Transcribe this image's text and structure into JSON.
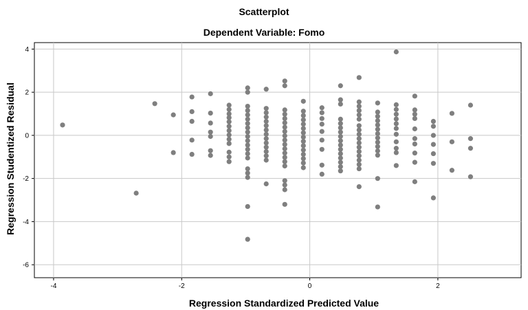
{
  "chart_data": {
    "type": "scatter",
    "title": "Scatterplot",
    "subtitle": "Dependent Variable: Fomo",
    "xlabel": "Regression Standardized Predicted Value",
    "ylabel": "Regression Studentized Residual",
    "xlim": [
      -4.3,
      3.3
    ],
    "ylim": [
      -6.6,
      4.3
    ],
    "xticks": [
      -4,
      -2,
      0,
      2
    ],
    "yticks": [
      4,
      2,
      0,
      -2,
      -4,
      -6
    ],
    "grid": true,
    "point_color": "#7f7f7f",
    "gridline_color": "#c8c8c8",
    "points": [
      [
        -3.86,
        0.48
      ],
      [
        -2.71,
        -2.68
      ],
      [
        -2.42,
        1.47
      ],
      [
        -2.13,
        0.95
      ],
      [
        -2.13,
        -0.8
      ],
      [
        -1.84,
        1.78
      ],
      [
        -1.84,
        1.1
      ],
      [
        -1.84,
        0.65
      ],
      [
        -1.84,
        -0.22
      ],
      [
        -1.84,
        -0.88
      ],
      [
        -1.55,
        1.93
      ],
      [
        -1.55,
        1.03
      ],
      [
        -1.55,
        0.57
      ],
      [
        -1.55,
        0.15
      ],
      [
        -1.55,
        -0.05
      ],
      [
        -1.55,
        -0.71
      ],
      [
        -1.55,
        -0.93
      ],
      [
        -1.26,
        1.4
      ],
      [
        -1.26,
        1.2
      ],
      [
        -1.26,
        1.0
      ],
      [
        -1.26,
        0.82
      ],
      [
        -1.26,
        0.63
      ],
      [
        -1.26,
        0.42
      ],
      [
        -1.26,
        0.22
      ],
      [
        -1.26,
        0.02
      ],
      [
        -1.26,
        -0.18
      ],
      [
        -1.26,
        -0.38
      ],
      [
        -1.26,
        -0.78
      ],
      [
        -1.26,
        -1.0
      ],
      [
        -1.26,
        -1.22
      ],
      [
        -0.97,
        2.2
      ],
      [
        -0.97,
        2.0
      ],
      [
        -0.97,
        1.35
      ],
      [
        -0.97,
        1.15
      ],
      [
        -0.97,
        0.95
      ],
      [
        -0.97,
        0.75
      ],
      [
        -0.97,
        0.55
      ],
      [
        -0.97,
        0.35
      ],
      [
        -0.97,
        0.15
      ],
      [
        -0.97,
        -0.05
      ],
      [
        -0.97,
        -0.25
      ],
      [
        -0.97,
        -0.45
      ],
      [
        -0.97,
        -0.65
      ],
      [
        -0.97,
        -0.85
      ],
      [
        -0.97,
        -1.05
      ],
      [
        -0.97,
        -1.55
      ],
      [
        -0.97,
        -1.75
      ],
      [
        -0.97,
        -1.95
      ],
      [
        -0.97,
        -3.3
      ],
      [
        -0.97,
        -4.82
      ],
      [
        -0.68,
        2.14
      ],
      [
        -0.68,
        1.25
      ],
      [
        -0.68,
        1.05
      ],
      [
        -0.68,
        0.85
      ],
      [
        -0.68,
        0.65
      ],
      [
        -0.68,
        0.45
      ],
      [
        -0.68,
        0.25
      ],
      [
        -0.68,
        0.05
      ],
      [
        -0.68,
        -0.15
      ],
      [
        -0.68,
        -0.35
      ],
      [
        -0.68,
        -0.55
      ],
      [
        -0.68,
        -0.75
      ],
      [
        -0.68,
        -0.95
      ],
      [
        -0.68,
        -1.15
      ],
      [
        -0.68,
        -2.25
      ],
      [
        -0.39,
        2.52
      ],
      [
        -0.39,
        2.3
      ],
      [
        -0.39,
        1.18
      ],
      [
        -0.39,
        0.98
      ],
      [
        -0.39,
        0.78
      ],
      [
        -0.39,
        0.58
      ],
      [
        -0.39,
        0.38
      ],
      [
        -0.39,
        0.18
      ],
      [
        -0.39,
        -0.02
      ],
      [
        -0.39,
        -0.22
      ],
      [
        -0.39,
        -0.42
      ],
      [
        -0.39,
        -0.62
      ],
      [
        -0.39,
        -0.82
      ],
      [
        -0.39,
        -1.02
      ],
      [
        -0.39,
        -1.22
      ],
      [
        -0.39,
        -1.42
      ],
      [
        -0.39,
        -2.1
      ],
      [
        -0.39,
        -2.3
      ],
      [
        -0.39,
        -2.52
      ],
      [
        -0.39,
        -3.2
      ],
      [
        -0.1,
        1.58
      ],
      [
        -0.1,
        1.12
      ],
      [
        -0.1,
        0.92
      ],
      [
        -0.1,
        0.72
      ],
      [
        -0.1,
        0.52
      ],
      [
        -0.1,
        0.32
      ],
      [
        -0.1,
        0.12
      ],
      [
        -0.1,
        -0.08
      ],
      [
        -0.1,
        -0.28
      ],
      [
        -0.1,
        -0.48
      ],
      [
        -0.1,
        -0.68
      ],
      [
        -0.1,
        -0.88
      ],
      [
        -0.1,
        -1.08
      ],
      [
        -0.1,
        -1.28
      ],
      [
        -0.1,
        -1.5
      ],
      [
        0.19,
        1.28
      ],
      [
        0.19,
        1.05
      ],
      [
        0.19,
        0.78
      ],
      [
        0.19,
        0.52
      ],
      [
        0.19,
        0.18
      ],
      [
        0.19,
        -0.22
      ],
      [
        0.19,
        -0.65
      ],
      [
        0.19,
        -1.38
      ],
      [
        0.19,
        -1.8
      ],
      [
        0.48,
        2.3
      ],
      [
        0.48,
        1.65
      ],
      [
        0.48,
        1.45
      ],
      [
        0.48,
        0.75
      ],
      [
        0.48,
        0.55
      ],
      [
        0.48,
        0.35
      ],
      [
        0.48,
        0.15
      ],
      [
        0.48,
        -0.05
      ],
      [
        0.48,
        -0.25
      ],
      [
        0.48,
        -0.45
      ],
      [
        0.48,
        -0.65
      ],
      [
        0.48,
        -0.85
      ],
      [
        0.48,
        -1.05
      ],
      [
        0.48,
        -1.25
      ],
      [
        0.48,
        -1.45
      ],
      [
        0.48,
        -1.65
      ],
      [
        0.77,
        2.68
      ],
      [
        0.77,
        1.55
      ],
      [
        0.77,
        1.35
      ],
      [
        0.77,
        1.15
      ],
      [
        0.77,
        0.95
      ],
      [
        0.77,
        0.75
      ],
      [
        0.77,
        0.45
      ],
      [
        0.77,
        0.25
      ],
      [
        0.77,
        0.05
      ],
      [
        0.77,
        -0.15
      ],
      [
        0.77,
        -0.35
      ],
      [
        0.77,
        -0.55
      ],
      [
        0.77,
        -0.75
      ],
      [
        0.77,
        -0.95
      ],
      [
        0.77,
        -1.15
      ],
      [
        0.77,
        -1.35
      ],
      [
        0.77,
        -1.55
      ],
      [
        0.77,
        -2.38
      ],
      [
        1.06,
        1.5
      ],
      [
        1.06,
        1.08
      ],
      [
        1.06,
        0.88
      ],
      [
        1.06,
        0.68
      ],
      [
        1.06,
        0.48
      ],
      [
        1.06,
        0.28
      ],
      [
        1.06,
        0.08
      ],
      [
        1.06,
        -0.12
      ],
      [
        1.06,
        -0.32
      ],
      [
        1.06,
        -0.52
      ],
      [
        1.06,
        -0.72
      ],
      [
        1.06,
        -0.92
      ],
      [
        1.06,
        -2.0
      ],
      [
        1.06,
        -3.32
      ],
      [
        1.35,
        3.87
      ],
      [
        1.35,
        1.42
      ],
      [
        1.35,
        1.2
      ],
      [
        1.35,
        0.98
      ],
      [
        1.35,
        0.76
      ],
      [
        1.35,
        0.54
      ],
      [
        1.35,
        0.32
      ],
      [
        1.35,
        0.05
      ],
      [
        1.35,
        -0.3
      ],
      [
        1.35,
        -0.6
      ],
      [
        1.35,
        -0.8
      ],
      [
        1.35,
        -1.4
      ],
      [
        1.64,
        1.82
      ],
      [
        1.64,
        1.18
      ],
      [
        1.64,
        0.98
      ],
      [
        1.64,
        0.78
      ],
      [
        1.64,
        0.3
      ],
      [
        1.64,
        -0.15
      ],
      [
        1.64,
        -0.4
      ],
      [
        1.64,
        -0.82
      ],
      [
        1.64,
        -1.25
      ],
      [
        1.64,
        -2.15
      ],
      [
        1.93,
        0.65
      ],
      [
        1.93,
        0.42
      ],
      [
        1.93,
        0.0
      ],
      [
        1.93,
        -0.42
      ],
      [
        1.93,
        -0.85
      ],
      [
        1.93,
        -1.3
      ],
      [
        1.93,
        -2.9
      ],
      [
        2.22,
        1.02
      ],
      [
        2.22,
        -0.3
      ],
      [
        2.22,
        -1.62
      ],
      [
        2.51,
        1.4
      ],
      [
        2.51,
        -0.15
      ],
      [
        2.51,
        -0.6
      ],
      [
        2.51,
        -1.92
      ]
    ]
  }
}
